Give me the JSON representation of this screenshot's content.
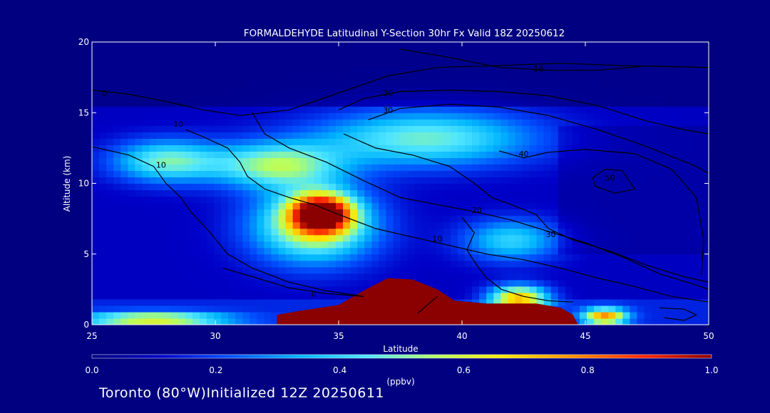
{
  "footer": {
    "location": "Toronto (80°W)",
    "initialized": "Initialized 12Z 20250611"
  },
  "chart_data": {
    "type": "heatmap",
    "title": "FORMALDEHYDE Latitudinal Y-Section 30hr  Fx Valid 18Z 20250612",
    "xlabel": "Latitude",
    "ylabel": "Altitude (km)",
    "xlim": [
      25,
      50
    ],
    "ylim": [
      0,
      20
    ],
    "x_ticks": [
      "25",
      "30",
      "35",
      "40",
      "45",
      "50"
    ],
    "y_ticks": [
      "0",
      "5",
      "10",
      "15",
      "20"
    ],
    "colorbar": {
      "unit_label": "(ppbv)",
      "range": [
        0.0,
        1.0
      ],
      "ticks": [
        "0.0",
        "0.2",
        "0.4",
        "0.6",
        "0.8",
        "1.0"
      ],
      "colormap": [
        "#000080",
        "#0000c8",
        "#0050ff",
        "#00b4ff",
        "#50e6ff",
        "#b4ff64",
        "#ffe600",
        "#ff8c00",
        "#ff2800",
        "#8b0000"
      ]
    },
    "field_blobs": [
      {
        "lat": 34.3,
        "alt": 7.9,
        "peak": 0.82,
        "slat": 1.2,
        "salt": 1.3
      },
      {
        "lat": 34.0,
        "alt": 7.0,
        "peak": 0.5,
        "slat": 2.5,
        "salt": 2.6
      },
      {
        "lat": 32.5,
        "alt": 11.3,
        "peak": 0.42,
        "slat": 2.6,
        "salt": 1.6
      },
      {
        "lat": 28.0,
        "alt": 11.6,
        "peak": 0.38,
        "slat": 2.2,
        "salt": 1.5
      },
      {
        "lat": 38.5,
        "alt": 13.2,
        "peak": 0.38,
        "slat": 4.5,
        "salt": 2.0
      },
      {
        "lat": 42.0,
        "alt": 6.0,
        "peak": 0.3,
        "slat": 2.0,
        "salt": 1.5
      },
      {
        "lat": 42.3,
        "alt": 1.9,
        "peak": 0.62,
        "slat": 1.2,
        "salt": 0.9
      },
      {
        "lat": 45.8,
        "alt": 0.6,
        "peak": 0.62,
        "slat": 0.9,
        "salt": 0.6
      },
      {
        "lat": 27.5,
        "alt": 0.4,
        "peak": 0.5,
        "slat": 3.0,
        "salt": 0.5
      }
    ],
    "high_region": [
      [
        32.5,
        0.0
      ],
      [
        32.5,
        0.7
      ],
      [
        33.5,
        1.0
      ],
      [
        35.0,
        1.4
      ],
      [
        36.0,
        2.4
      ],
      [
        37.0,
        3.3
      ],
      [
        38.0,
        3.2
      ],
      [
        39.0,
        2.5
      ],
      [
        39.7,
        1.7
      ],
      [
        41.0,
        1.5
      ],
      [
        43.0,
        1.5
      ],
      [
        44.0,
        1.2
      ],
      [
        44.5,
        0.7
      ],
      [
        44.7,
        0.0
      ]
    ],
    "contours": [
      {
        "label": "0",
        "label_at": [
          25.5,
          16.2
        ],
        "points": [
          [
            25.0,
            16.6
          ],
          [
            26.5,
            16.3
          ],
          [
            28.0,
            15.8
          ],
          [
            29.5,
            15.2
          ],
          [
            31.0,
            14.8
          ],
          [
            33.0,
            15.2
          ],
          [
            35.0,
            16.4
          ],
          [
            37.0,
            17.6
          ],
          [
            39.0,
            18.2
          ],
          [
            41.0,
            18.3
          ],
          [
            44.0,
            18.5
          ],
          [
            47.0,
            18.3
          ],
          [
            50.0,
            18.2
          ]
        ]
      },
      {
        "label": "10",
        "label_at": [
          43.1,
          17.9
        ],
        "points": [
          [
            37.5,
            19.5
          ],
          [
            39.5,
            18.9
          ],
          [
            41.5,
            18.2
          ],
          [
            43.5,
            18.0
          ],
          [
            45.5,
            18.0
          ],
          [
            47.5,
            18.3
          ],
          [
            50.0,
            18.2
          ]
        ]
      },
      {
        "label": "20",
        "label_at": [
          37.0,
          16.2
        ],
        "points": [
          [
            35.0,
            15.2
          ],
          [
            36.0,
            16.0
          ],
          [
            37.5,
            16.5
          ],
          [
            39.5,
            16.6
          ],
          [
            41.5,
            16.5
          ],
          [
            43.5,
            16.2
          ],
          [
            45.5,
            15.5
          ],
          [
            47.5,
            14.4
          ],
          [
            49.0,
            13.8
          ],
          [
            50.0,
            13.5
          ]
        ]
      },
      {
        "label": "30",
        "label_at": [
          37.0,
          15.0
        ],
        "points": [
          [
            36.2,
            14.5
          ],
          [
            37.5,
            15.3
          ],
          [
            39.5,
            15.6
          ],
          [
            41.5,
            15.4
          ],
          [
            43.5,
            14.8
          ],
          [
            45.5,
            13.8
          ],
          [
            47.5,
            12.6
          ],
          [
            49.5,
            11.2
          ],
          [
            50.0,
            10.7
          ]
        ]
      },
      {
        "label": "40",
        "label_at": [
          42.5,
          11.9
        ],
        "points": [
          [
            41.5,
            12.3
          ],
          [
            42.5,
            11.8
          ],
          [
            43.5,
            12.2
          ],
          [
            45.0,
            12.4
          ],
          [
            47.0,
            12.1
          ],
          [
            48.5,
            11.0
          ],
          [
            49.5,
            9.0
          ],
          [
            49.8,
            6.0
          ],
          [
            49.7,
            3.5
          ]
        ]
      },
      {
        "label": "50",
        "label_at": [
          46.0,
          10.2
        ],
        "points": [
          [
            45.3,
            10.4
          ],
          [
            45.8,
            11.0
          ],
          [
            46.5,
            10.9
          ],
          [
            47.0,
            9.6
          ],
          [
            46.2,
            9.3
          ],
          [
            45.4,
            9.8
          ],
          [
            45.3,
            10.4
          ]
        ]
      },
      {
        "label": "10",
        "label_at": [
          27.8,
          11.1
        ],
        "points": [
          [
            25.0,
            12.6
          ],
          [
            26.5,
            12.0
          ],
          [
            27.5,
            11.2
          ],
          [
            28.0,
            10.0
          ],
          [
            28.6,
            9.0
          ],
          [
            29.0,
            8.0
          ],
          [
            29.8,
            6.5
          ],
          [
            30.5,
            5.0
          ],
          [
            31.5,
            4.0
          ],
          [
            33.0,
            3.0
          ],
          [
            34.5,
            2.4
          ],
          [
            36.0,
            2.0
          ]
        ]
      },
      {
        "label": "10",
        "label_at": [
          28.5,
          14.0
        ],
        "points": [
          [
            28.8,
            13.8
          ],
          [
            29.5,
            13.3
          ],
          [
            30.5,
            12.5
          ],
          [
            31.0,
            11.5
          ],
          [
            31.3,
            10.5
          ],
          [
            32.0,
            9.6
          ],
          [
            33.0,
            9.0
          ],
          [
            34.0,
            8.5
          ],
          [
            35.0,
            7.8
          ],
          [
            36.5,
            6.8
          ],
          [
            38.0,
            6.2
          ],
          [
            39.5,
            5.6
          ],
          [
            41.0,
            5.0
          ],
          [
            42.5,
            4.6
          ],
          [
            44.0,
            4.0
          ],
          [
            45.5,
            3.3
          ],
          [
            47.0,
            2.7
          ],
          [
            48.5,
            2.0
          ],
          [
            50.0,
            1.6
          ]
        ]
      },
      {
        "label": "20",
        "label_at": [
          40.6,
          7.9
        ],
        "points": [
          [
            31.5,
            15.0
          ],
          [
            32.0,
            13.5
          ],
          [
            33.0,
            12.5
          ],
          [
            34.5,
            11.5
          ],
          [
            36.0,
            10.2
          ],
          [
            37.5,
            9.0
          ],
          [
            39.0,
            8.5
          ],
          [
            40.5,
            8.0
          ],
          [
            42.0,
            7.4
          ],
          [
            43.5,
            6.6
          ],
          [
            45.0,
            5.8
          ],
          [
            46.5,
            4.8
          ],
          [
            48.0,
            3.6
          ],
          [
            49.5,
            2.8
          ],
          [
            50.0,
            2.5
          ]
        ]
      },
      {
        "label": "30",
        "label_at": [
          43.6,
          6.2
        ],
        "points": [
          [
            35.2,
            13.5
          ],
          [
            36.5,
            12.5
          ],
          [
            38.0,
            12.0
          ],
          [
            39.5,
            11.2
          ],
          [
            40.5,
            10.0
          ],
          [
            41.2,
            9.0
          ],
          [
            42.0,
            8.5
          ],
          [
            43.0,
            7.8
          ],
          [
            43.5,
            6.8
          ],
          [
            44.5,
            6.0
          ],
          [
            46.0,
            5.2
          ],
          [
            47.5,
            4.2
          ],
          [
            49.0,
            3.4
          ],
          [
            50.0,
            3.0
          ]
        ]
      },
      {
        "label": "10",
        "label_at": [
          39.0,
          5.9
        ],
        "points": [
          [
            40.0,
            7.6
          ],
          [
            40.5,
            6.5
          ],
          [
            40.2,
            5.3
          ],
          [
            40.6,
            4.2
          ],
          [
            41.0,
            3.3
          ],
          [
            41.6,
            2.5
          ],
          [
            42.5,
            2.0
          ],
          [
            43.5,
            1.7
          ],
          [
            44.5,
            1.6
          ]
        ]
      },
      {
        "label": "0",
        "label_at": [
          34.0,
          2.0
        ],
        "points": [
          [
            30.3,
            4.0
          ],
          [
            31.5,
            3.4
          ],
          [
            33.0,
            2.6
          ],
          [
            34.5,
            2.2
          ],
          [
            36.0,
            2.0
          ]
        ]
      },
      {
        "label": "",
        "label_at": [
          0,
          0
        ],
        "points": [
          [
            38.2,
            0.8
          ],
          [
            38.6,
            1.4
          ],
          [
            39.0,
            2.0
          ]
        ]
      },
      {
        "label": "",
        "label_at": [
          0,
          0
        ],
        "points": [
          [
            48.0,
            1.2
          ],
          [
            49.0,
            1.1
          ],
          [
            49.5,
            0.7
          ],
          [
            49.0,
            0.3
          ],
          [
            48.2,
            0.5
          ]
        ]
      }
    ]
  }
}
